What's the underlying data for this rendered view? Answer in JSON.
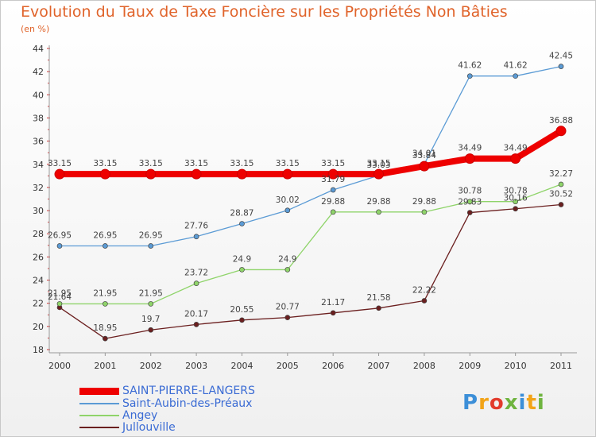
{
  "header": {
    "title": "Evolution du Taux de Taxe Foncière sur les Propriétés Non Bâties",
    "unit": "(en %)"
  },
  "chart_data": {
    "type": "line",
    "x": [
      "2000",
      "2001",
      "2002",
      "2003",
      "2004",
      "2005",
      "2006",
      "2007",
      "2008",
      "2009",
      "2010",
      "2011"
    ],
    "ylim": [
      18,
      44
    ],
    "yticks": [
      18,
      20,
      22,
      24,
      26,
      28,
      30,
      32,
      34,
      36,
      38,
      40,
      42,
      44
    ],
    "series": [
      {
        "name": "SAINT-PIERRE-LANGERS",
        "color": "#ee0000",
        "values": [
          33.15,
          33.15,
          33.15,
          33.15,
          33.15,
          33.15,
          33.15,
          33.15,
          33.84,
          34.49,
          34.49,
          36.88
        ],
        "labels": [
          "33.15",
          "33.15",
          "33.15",
          "33.15",
          "33.15",
          "33.15",
          "33.15",
          "33.15",
          "33.84",
          "34.49",
          "34.49",
          "36.88"
        ]
      },
      {
        "name": "Saint-Aubin-des-Préaux",
        "color": "#5b9bd5",
        "values": [
          26.95,
          26.95,
          26.95,
          27.76,
          28.87,
          30.02,
          31.79,
          33.03,
          34.01,
          41.62,
          41.62,
          42.45
        ],
        "labels": [
          "26.95",
          "26.95",
          "26.95",
          "27.76",
          "28.87",
          "30.02",
          "31.79",
          "33.03",
          "34.01",
          "41.62",
          "41.62",
          "42.45"
        ]
      },
      {
        "name": "Angey",
        "color": "#8fd46a",
        "values": [
          21.95,
          21.95,
          21.95,
          23.72,
          24.9,
          24.9,
          29.88,
          29.88,
          29.88,
          30.78,
          30.78,
          32.27
        ],
        "labels": [
          "21.95",
          "21.95",
          "21.95",
          "23.72",
          "24.9",
          "24.9",
          "29.88",
          "29.88",
          "29.88",
          "30.78",
          "30.78",
          "32.27"
        ]
      },
      {
        "name": "Jullouville",
        "color": "#6b1f1f",
        "values": [
          21.64,
          18.95,
          19.7,
          20.17,
          20.55,
          20.77,
          21.17,
          21.58,
          22.22,
          29.83,
          30.16,
          30.52
        ],
        "labels": [
          "21.64",
          "18.95",
          "19.7",
          "20.17",
          "20.55",
          "20.77",
          "21.17",
          "21.58",
          "22.22",
          "29.83",
          "30.16",
          "30.52"
        ]
      }
    ]
  },
  "legend": [
    {
      "label": "SAINT-PIERRE-LANGERS",
      "color": "#ee0000"
    },
    {
      "label": "Saint-Aubin-des-Préaux",
      "color": "#5b9bd5"
    },
    {
      "label": "Angey",
      "color": "#8fd46a"
    },
    {
      "label": "Jullouville",
      "color": "#6b1f1f"
    }
  ],
  "logo": {
    "text": "Proxiti",
    "colors": [
      "#3c8fd8",
      "#f2a418",
      "#e23b2c",
      "#6fb43f",
      "#3c8fd8",
      "#f2a418",
      "#6fb43f"
    ]
  }
}
